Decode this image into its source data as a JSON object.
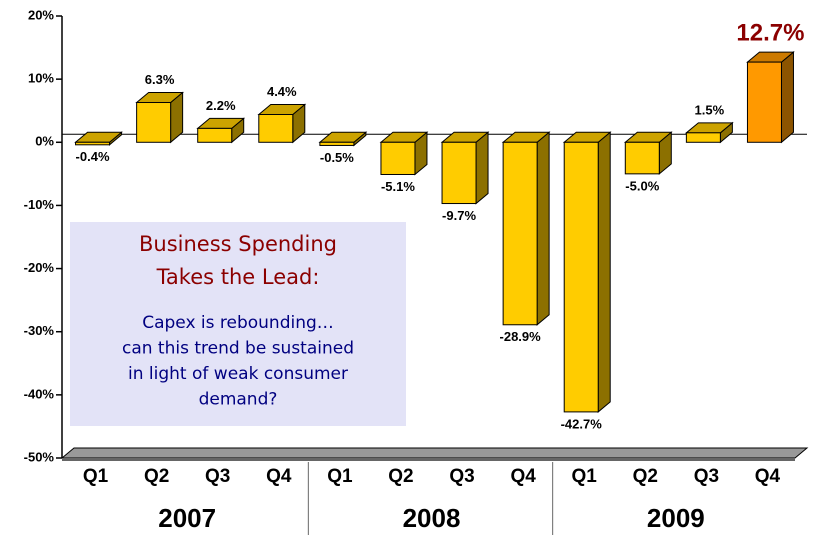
{
  "chart_data": {
    "type": "bar3d",
    "categories": [
      "Q1",
      "Q2",
      "Q3",
      "Q4",
      "Q1",
      "Q2",
      "Q3",
      "Q4",
      "Q1",
      "Q2",
      "Q3",
      "Q4"
    ],
    "groups": [
      "2007",
      "2008",
      "2009"
    ],
    "values": [
      -0.4,
      6.3,
      2.2,
      4.4,
      -0.5,
      -5.1,
      -9.7,
      -28.9,
      -42.7,
      -5.0,
      1.5,
      12.7
    ],
    "value_labels": [
      "-0.4%",
      "6.3%",
      "2.2%",
      "4.4%",
      "-0.5%",
      "-5.1%",
      "-9.7%",
      "-28.9%",
      "-42.7%",
      "-5.0%",
      "1.5%",
      "12.7%"
    ],
    "colors": [
      "#ffcc00",
      "#ffcc00",
      "#ffcc00",
      "#ffcc00",
      "#ffcc00",
      "#ffcc00",
      "#ffcc00",
      "#ffcc00",
      "#ffcc00",
      "#ffcc00",
      "#ffcc00",
      "#ff9900"
    ],
    "ylim": [
      -50,
      20
    ],
    "yticks": [
      {
        "value": 20,
        "label": "20%"
      },
      {
        "value": 10,
        "label": "10%"
      },
      {
        "value": 0,
        "label": "0%"
      },
      {
        "value": -10,
        "label": "-10%"
      },
      {
        "value": -20,
        "label": "-20%"
      },
      {
        "value": -30,
        "label": "-30%"
      },
      {
        "value": -40,
        "label": "-40%"
      },
      {
        "value": -50,
        "label": "-50%"
      }
    ],
    "annotation": {
      "title": [
        "Business Spending",
        "Takes the Lead:"
      ],
      "body": [
        "Capex is rebounding…",
        "can this trend be sustained",
        "in light of weak consumer",
        "demand?"
      ]
    }
  }
}
